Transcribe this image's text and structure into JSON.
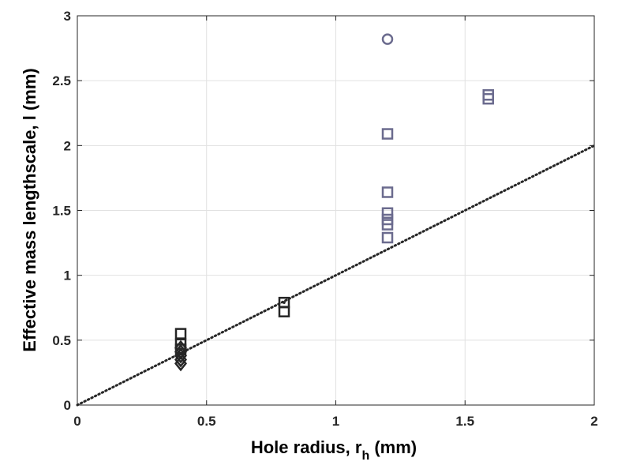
{
  "chart_data": {
    "type": "scatter",
    "title": "",
    "xlabel_main": "Hole radius, r",
    "xlabel_sub": "h",
    "xlabel_unit": " (mm)",
    "ylabel": "Effective mass lengthscale, l (mm)",
    "xlim": [
      0,
      2
    ],
    "ylim": [
      0,
      3
    ],
    "xticks": [
      0,
      0.5,
      1,
      1.5,
      2
    ],
    "xtick_labels": [
      "0",
      "0.5",
      "1",
      "1.5",
      "2"
    ],
    "yticks": [
      0,
      0.5,
      1,
      1.5,
      2,
      2.5,
      3
    ],
    "ytick_labels": [
      "0",
      "0.5",
      "1",
      "1.5",
      "2",
      "2.5",
      "3"
    ],
    "grid": true,
    "colors": {
      "black": "#262626",
      "slate": "#6b6b8e",
      "grid": "#e1e1e1"
    },
    "series": [
      {
        "marker": "square",
        "color": "#262626",
        "x": [
          0.4,
          0.4,
          0.4,
          0.8,
          0.8
        ],
        "y": [
          0.55,
          0.47,
          0.43,
          0.79,
          0.72
        ]
      },
      {
        "marker": "diamond",
        "color": "#262626",
        "x": [
          0.4,
          0.4,
          0.4,
          0.4,
          0.4
        ],
        "y": [
          0.44,
          0.41,
          0.38,
          0.35,
          0.32
        ]
      },
      {
        "marker": "square",
        "color": "#6b6b8e",
        "x": [
          1.2,
          1.2,
          1.2,
          1.2,
          1.2,
          1.2,
          1.59,
          1.59
        ],
        "y": [
          2.09,
          1.64,
          1.48,
          1.43,
          1.39,
          1.29,
          2.39,
          2.36
        ]
      },
      {
        "marker": "circle",
        "color": "#6b6b8e",
        "x": [
          1.2
        ],
        "y": [
          2.82
        ]
      },
      {
        "marker": "dot",
        "color": "#262626",
        "x": [
          0.8
        ],
        "y": [
          0.79
        ]
      }
    ],
    "reference_line": {
      "style": "dotted",
      "color": "#262626",
      "x": [
        0,
        2
      ],
      "y": [
        0,
        2
      ]
    }
  }
}
